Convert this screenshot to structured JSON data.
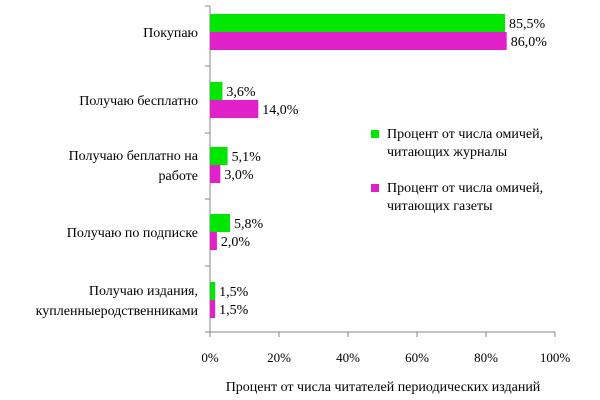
{
  "chart_data": {
    "type": "bar",
    "orientation": "horizontal",
    "categories": [
      [
        "Покупаю"
      ],
      [
        "Получаю бесплатно"
      ],
      [
        "Получаю беплатно на",
        "работе"
      ],
      [
        "Получаю по подписке"
      ],
      [
        "Получаю издания,",
        "купленныеродственниками"
      ]
    ],
    "series": [
      {
        "name": "Процент от числа омичей, читающих журналы",
        "color": "#00e600",
        "values": [
          85.5,
          3.6,
          5.1,
          5.8,
          1.5
        ],
        "labels": [
          "85,5%",
          "3,6%",
          "5,1%",
          "5,8%",
          "1,5%"
        ]
      },
      {
        "name": "Процент от числа омичей, читающих газеты",
        "color": "#e020c8",
        "values": [
          86.0,
          14.0,
          3.0,
          2.0,
          1.5
        ],
        "labels": [
          "86,0%",
          "14,0%",
          "3,0%",
          "2,0%",
          "1,5%"
        ]
      }
    ],
    "legend": [
      [
        "Процент от числа омичей,",
        "читающих журналы"
      ],
      [
        "Процент от числа омичей,",
        "читающих газеты"
      ]
    ],
    "xlabel": "Процент от числа читателей периодических изданий",
    "xlim": [
      0,
      100
    ],
    "xticks": [
      "0%",
      "20%",
      "40%",
      "60%",
      "80%",
      "100%"
    ],
    "legend_position": "right",
    "grid": false
  }
}
